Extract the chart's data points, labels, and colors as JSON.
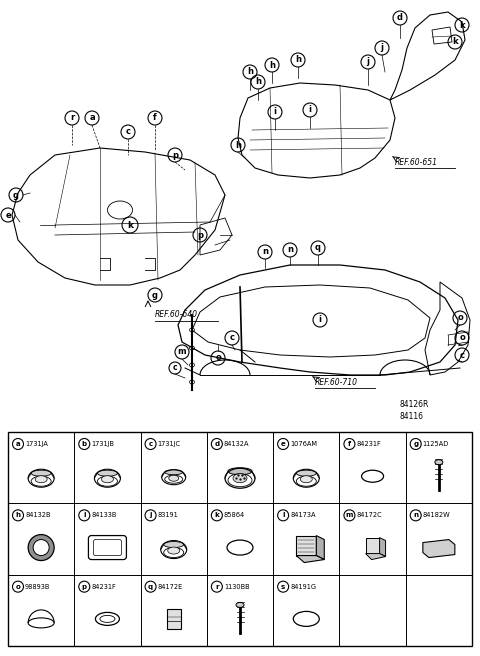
{
  "bg_color": "#ffffff",
  "parts_table": {
    "rows": [
      [
        {
          "label": "a",
          "code": "1731JA",
          "shape": "grommet_3d"
        },
        {
          "label": "b",
          "code": "1731JB",
          "shape": "grommet_3d"
        },
        {
          "label": "c",
          "code": "1731JC",
          "shape": "grommet_3d_flat"
        },
        {
          "label": "d",
          "code": "84132A",
          "shape": "grommet_large"
        },
        {
          "label": "e",
          "code": "1076AM",
          "shape": "grommet_3d"
        },
        {
          "label": "f",
          "code": "84231F",
          "shape": "oval_small"
        },
        {
          "label": "g",
          "code": "1125AD",
          "shape": "screw"
        }
      ],
      [
        {
          "label": "h",
          "code": "84132B",
          "shape": "ring"
        },
        {
          "label": "i",
          "code": "84133B",
          "shape": "rect_rounded"
        },
        {
          "label": "j",
          "code": "83191",
          "shape": "grommet_3d"
        },
        {
          "label": "k",
          "code": "85864",
          "shape": "oval_medium"
        },
        {
          "label": "l",
          "code": "84173A",
          "shape": "block_3d"
        },
        {
          "label": "m",
          "code": "84172C",
          "shape": "block_3d_small"
        },
        {
          "label": "n",
          "code": "84182W",
          "shape": "rect_flat"
        }
      ],
      [
        {
          "label": "o",
          "code": "98893B",
          "shape": "dome"
        },
        {
          "label": "p",
          "code": "84231F",
          "shape": "oval_ring"
        },
        {
          "label": "q",
          "code": "84172E",
          "shape": "square_box"
        },
        {
          "label": "r",
          "code": "1130BB",
          "shape": "screw"
        },
        {
          "label": "s",
          "code": "84191G",
          "shape": "oval_medium"
        },
        null,
        null
      ]
    ]
  }
}
